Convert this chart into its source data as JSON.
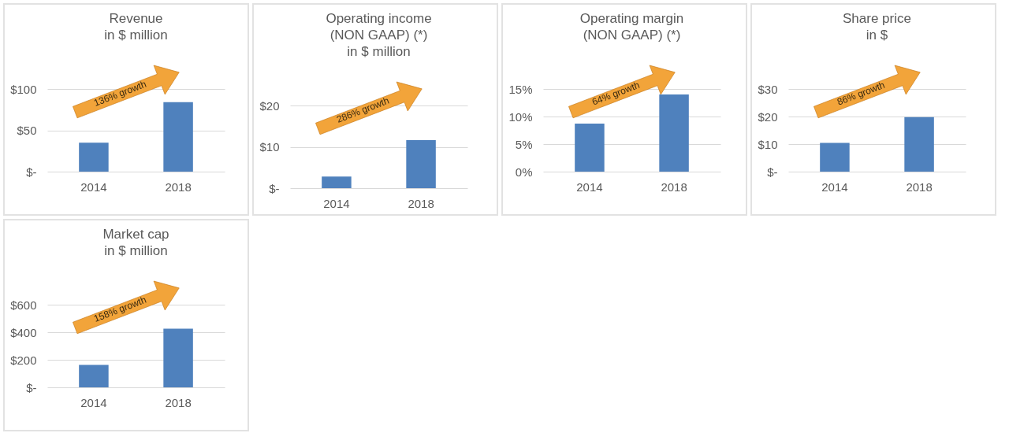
{
  "chart_data": [
    {
      "type": "bar",
      "title": "Revenue\nin $ million",
      "categories": [
        "2014",
        "2018"
      ],
      "values": [
        35,
        84
      ],
      "color": "#4f81bd",
      "ylim": [
        0,
        100
      ],
      "yticks": [
        {
          "value": 0,
          "label": "$-"
        },
        {
          "value": 50,
          "label": "$50"
        },
        {
          "value": 100,
          "label": "$100"
        }
      ],
      "grid": "y",
      "annotations": [
        "136% growth"
      ]
    },
    {
      "type": "bar",
      "title": "Operating income\n(NON GAAP) (*)\nin $ million",
      "categories": [
        "2014",
        "2018"
      ],
      "values": [
        2.8,
        11.6
      ],
      "color": "#4f81bd",
      "ylim": [
        0,
        20
      ],
      "yticks": [
        {
          "value": 0,
          "label": "$-"
        },
        {
          "value": 10,
          "label": "$10"
        },
        {
          "value": 20,
          "label": "$20"
        }
      ],
      "grid": "y",
      "annotations": [
        "286% growth"
      ]
    },
    {
      "type": "bar",
      "title": "Operating margin\n(NON GAAP) (*)",
      "categories": [
        "2014",
        "2018"
      ],
      "values": [
        8.7,
        14.0
      ],
      "color": "#4f81bd",
      "ylim": [
        0,
        15
      ],
      "yticks": [
        {
          "value": 0,
          "label": "0%"
        },
        {
          "value": 5,
          "label": "5%"
        },
        {
          "value": 10,
          "label": "10%"
        },
        {
          "value": 15,
          "label": "15%"
        }
      ],
      "grid": "y",
      "annotations": [
        "64% growth"
      ]
    },
    {
      "type": "bar",
      "title": "Share price\nin $",
      "categories": [
        "2014",
        "2018"
      ],
      "values": [
        10.4,
        19.8
      ],
      "color": "#4f81bd",
      "ylim": [
        0,
        30
      ],
      "yticks": [
        {
          "value": 0,
          "label": "$-"
        },
        {
          "value": 10,
          "label": "$10"
        },
        {
          "value": 20,
          "label": "$20"
        },
        {
          "value": 30,
          "label": "$30"
        }
      ],
      "grid": "y",
      "annotations": [
        "86% growth"
      ]
    },
    {
      "type": "bar",
      "title": "Market cap\nin $ million",
      "categories": [
        "2014",
        "2018"
      ],
      "values": [
        163,
        426
      ],
      "color": "#4f81bd",
      "ylim": [
        0,
        600
      ],
      "yticks": [
        {
          "value": 0,
          "label": "$-"
        },
        {
          "value": 200,
          "label": "$200"
        },
        {
          "value": 400,
          "label": "$400"
        },
        {
          "value": 600,
          "label": "$600"
        }
      ],
      "grid": "y",
      "annotations": [
        "158% growth"
      ]
    }
  ]
}
